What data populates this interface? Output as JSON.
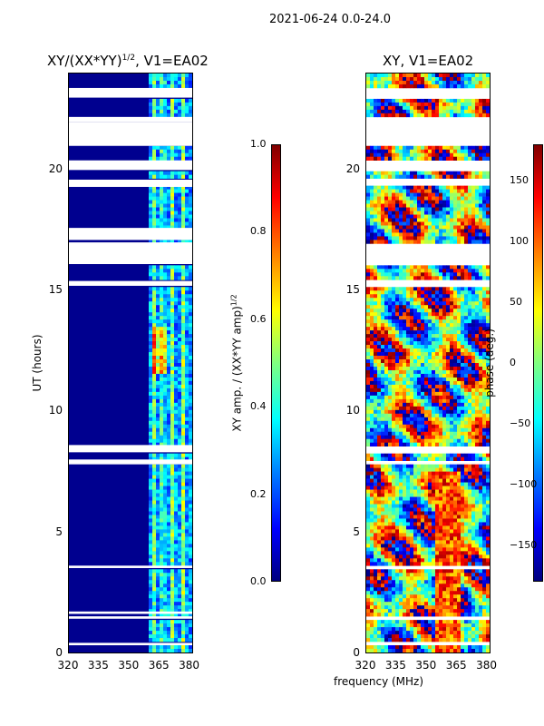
{
  "page": {
    "suptitle": "2021-06-24 0.0-24.0"
  },
  "chart_data": [
    {
      "type": "heatmap",
      "title_base": "XY/(XX*YY)",
      "title_exponent": "1/2",
      "title_suffix": ", V1=EA02",
      "xlabel": "",
      "ylabel": "UT (hours)",
      "xlim": [
        320,
        382
      ],
      "ylim": [
        0,
        24
      ],
      "x_ticks": [
        "320",
        "335",
        "350",
        "365",
        "380"
      ],
      "x_tick_values": [
        320,
        335,
        350,
        365,
        380
      ],
      "y_ticks": [
        "0",
        "5",
        "10",
        "15",
        "20"
      ],
      "y_tick_values": [
        0,
        5,
        10,
        15,
        20
      ],
      "colorbar": {
        "label_base": "XY amp. / (XX*YY amp)",
        "label_exponent": "1/2",
        "range": [
          0.0,
          1.0
        ],
        "ticks": [
          "0.0",
          "0.2",
          "0.4",
          "0.6",
          "0.8",
          "1.0"
        ],
        "tick_values": [
          0.0,
          0.2,
          0.4,
          0.6,
          0.8,
          1.0
        ]
      },
      "colormap": "jet",
      "flagged_ut_hours": [
        [
          23.0,
          23.4
        ],
        [
          22.0,
          22.2
        ],
        [
          21.0,
          22.0
        ],
        [
          20.0,
          20.4
        ],
        [
          19.3,
          19.6
        ],
        [
          17.1,
          17.6
        ],
        [
          16.1,
          17.0
        ],
        [
          15.2,
          15.4
        ],
        [
          8.3,
          8.6
        ],
        [
          7.8,
          8.0
        ],
        [
          3.5,
          3.6
        ],
        [
          1.6,
          1.7
        ],
        [
          1.4,
          1.5
        ],
        [
          0.3,
          0.4
        ]
      ]
    },
    {
      "type": "heatmap",
      "title": "XY, V1=EA02",
      "xlabel": "frequency (MHz)",
      "ylabel": "",
      "xlim": [
        320,
        382
      ],
      "ylim": [
        0,
        24
      ],
      "x_ticks": [
        "320",
        "335",
        "350",
        "365",
        "380"
      ],
      "x_tick_values": [
        320,
        335,
        350,
        365,
        380
      ],
      "y_ticks": [
        "0",
        "5",
        "10",
        "15",
        "20"
      ],
      "y_tick_values": [
        0,
        5,
        10,
        15,
        20
      ],
      "colorbar": {
        "label": "phase (deg.)",
        "range": [
          -180,
          180
        ],
        "ticks": [
          "−150",
          "−100",
          "−50",
          "0",
          "50",
          "100",
          "150"
        ],
        "tick_values": [
          -150,
          -100,
          -50,
          0,
          50,
          100,
          150
        ]
      },
      "colormap": "jet",
      "flagged_ut_hours": [
        [
          23.0,
          23.4
        ],
        [
          22.0,
          22.2
        ],
        [
          21.0,
          22.0
        ],
        [
          20.0,
          20.4
        ],
        [
          19.3,
          19.6
        ],
        [
          16.1,
          17.0
        ],
        [
          15.2,
          15.4
        ],
        [
          8.3,
          8.6
        ],
        [
          7.8,
          8.0
        ],
        [
          3.5,
          3.6
        ],
        [
          1.6,
          1.7
        ],
        [
          1.4,
          1.5
        ],
        [
          0.3,
          0.4
        ]
      ]
    }
  ]
}
